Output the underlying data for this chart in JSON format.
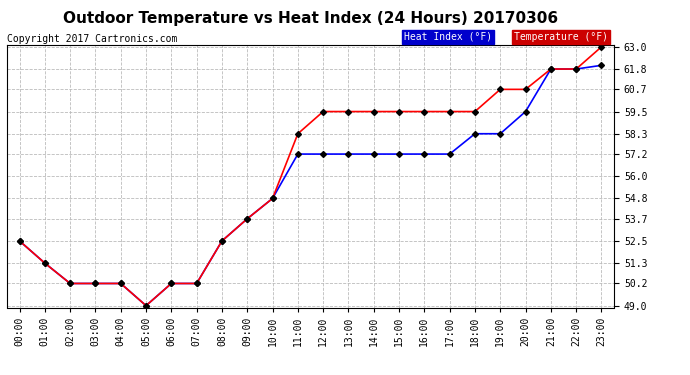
{
  "title": "Outdoor Temperature vs Heat Index (24 Hours) 20170306",
  "copyright": "Copyright 2017 Cartronics.com",
  "hours": [
    "00:00",
    "01:00",
    "02:00",
    "03:00",
    "04:00",
    "05:00",
    "06:00",
    "07:00",
    "08:00",
    "09:00",
    "10:00",
    "11:00",
    "12:00",
    "13:00",
    "14:00",
    "15:00",
    "16:00",
    "17:00",
    "18:00",
    "19:00",
    "20:00",
    "21:00",
    "22:00",
    "23:00"
  ],
  "temperature": [
    52.5,
    51.3,
    50.2,
    50.2,
    50.2,
    49.0,
    50.2,
    50.2,
    52.5,
    53.7,
    54.8,
    58.3,
    59.5,
    59.5,
    59.5,
    59.5,
    59.5,
    59.5,
    59.5,
    60.7,
    60.7,
    61.8,
    61.8,
    63.0
  ],
  "heat_index": [
    52.5,
    51.3,
    50.2,
    50.2,
    50.2,
    49.0,
    50.2,
    50.2,
    52.5,
    53.7,
    54.8,
    57.2,
    57.2,
    57.2,
    57.2,
    57.2,
    57.2,
    57.2,
    58.3,
    58.3,
    59.5,
    61.8,
    61.8,
    62.0
  ],
  "temp_color": "#ff0000",
  "heat_color": "#0000ff",
  "marker": "D",
  "markersize": 3,
  "markercolor": "#000000",
  "ylim_min": 49.0,
  "ylim_max": 63.0,
  "yticks": [
    49.0,
    50.2,
    51.3,
    52.5,
    53.7,
    54.8,
    56.0,
    57.2,
    58.3,
    59.5,
    60.7,
    61.8,
    63.0
  ],
  "ytick_labels": [
    "49.0",
    "50.2",
    "51.3",
    "52.5",
    "53.7",
    "54.8",
    "56.0",
    "57.2",
    "58.3",
    "59.5",
    "60.7",
    "61.8",
    "63.0"
  ],
  "legend_heat_label": "Heat Index (°F)",
  "legend_temp_label": "Temperature (°F)",
  "bg_color": "#ffffff",
  "plot_bg_color": "#ffffff",
  "grid_color": "#bbbbbb",
  "title_fontsize": 11,
  "tick_fontsize": 7,
  "copyright_fontsize": 7
}
